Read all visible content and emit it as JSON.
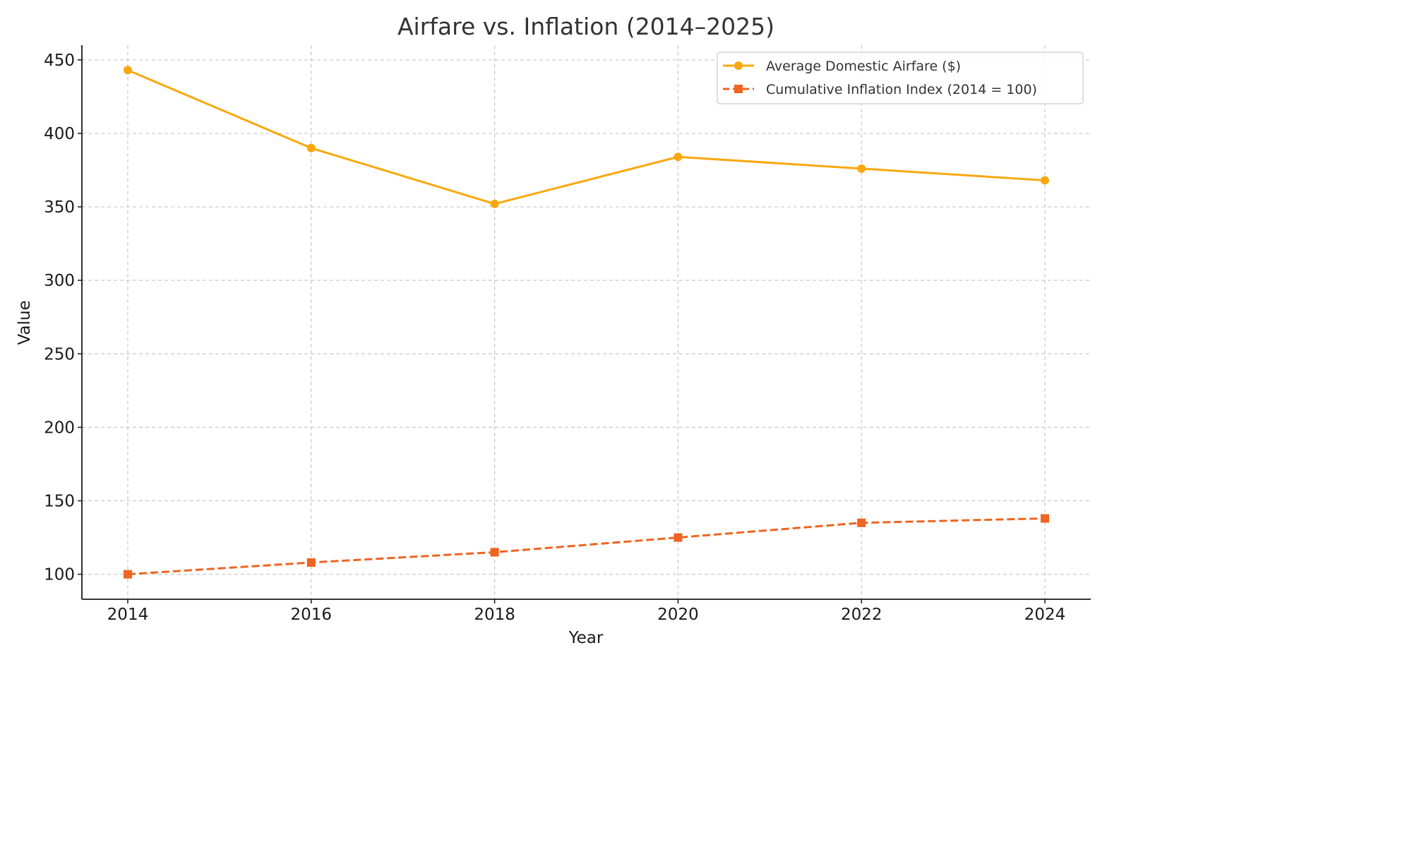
{
  "chart_data": {
    "type": "line",
    "title": "Airfare vs. Inflation (2014–2025)",
    "xlabel": "Year",
    "ylabel": "Value",
    "x": [
      2014,
      2016,
      2018,
      2020,
      2022,
      2024
    ],
    "xticks": [
      "2014",
      "2016",
      "2018",
      "2020",
      "2022",
      "2024"
    ],
    "yticks": [
      "100",
      "150",
      "200",
      "250",
      "300",
      "350",
      "400",
      "450"
    ],
    "xlim": [
      2013.5,
      2024.5
    ],
    "ylim": [
      83,
      460
    ],
    "grid": true,
    "legend_position": "top-right",
    "series": [
      {
        "name": "Average Domestic Airfare ($)",
        "values": [
          443,
          390,
          352,
          384,
          376,
          368
        ],
        "color": "#F9A80E",
        "style": "solid",
        "marker": "circle"
      },
      {
        "name": "Cumulative Inflation Index (2014 = 100)",
        "values": [
          100,
          108,
          115,
          125,
          135,
          138
        ],
        "color": "#EE6420",
        "style": "dashed",
        "marker": "square"
      }
    ]
  }
}
